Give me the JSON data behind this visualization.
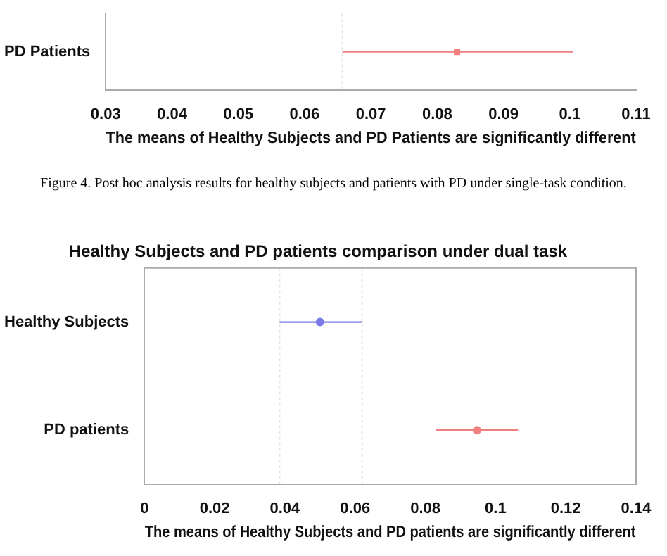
{
  "chart_data": [
    {
      "type": "scatter",
      "orientation": "horizontal",
      "xlabel": "The means of Healthy Subjects and PD Patients are significantly different",
      "categories": [
        "PD Patients"
      ],
      "values": [
        0.083
      ],
      "errors": [
        [
          0.0657,
          0.1005
        ]
      ],
      "colors": [
        "#f08080"
      ],
      "marker": "square",
      "xlim": [
        0.03,
        0.11
      ],
      "xticks": [
        0.03,
        0.04,
        0.05,
        0.06,
        0.07,
        0.08,
        0.09,
        0.1,
        0.11
      ],
      "ref_lines": [
        {
          "axis": "x",
          "value": 0.0657,
          "color": "#e4e4e4",
          "line_style": "dotted"
        }
      ],
      "annotations": [
        "Figure 4. Post hoc analysis results for healthy subjects and patients with PD under single-task condition."
      ]
    },
    {
      "type": "scatter",
      "orientation": "horizontal",
      "title": "Healthy Subjects and PD patients comparison under dual task",
      "xlabel": "The means of Healthy Subjects and PD patients are significantly different",
      "categories": [
        "Healthy Subjects",
        "PD patients"
      ],
      "values": [
        0.05,
        0.0947
      ],
      "errors": [
        [
          0.0385,
          0.062
        ],
        [
          0.083,
          0.1064
        ]
      ],
      "colors": [
        "#7a7ae8",
        "#f08080"
      ],
      "marker": "circle",
      "xlim": [
        0,
        0.14
      ],
      "xticks": [
        0,
        0.02,
        0.04,
        0.06,
        0.08,
        0.1,
        0.12,
        0.14
      ],
      "ref_lines": [
        {
          "axis": "x",
          "value": 0.0385,
          "color": "#e4e4e4",
          "line_style": "dotted"
        },
        {
          "axis": "x",
          "value": 0.062,
          "color": "#e4e4e4",
          "line_style": "dotted"
        }
      ]
    }
  ]
}
